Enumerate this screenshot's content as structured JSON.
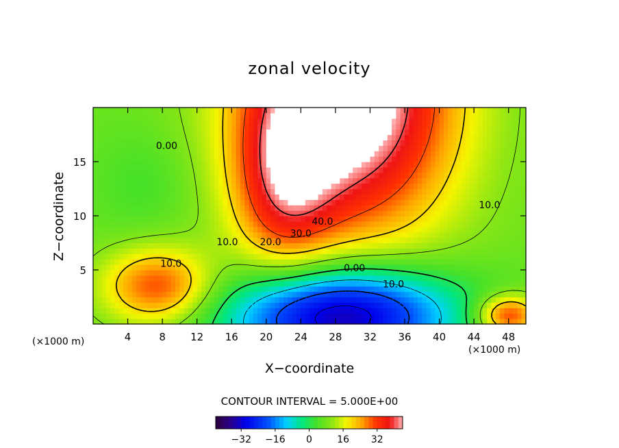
{
  "chart_data": {
    "type": "heatmap",
    "title": "zonal velocity",
    "xlabel": "X−coordinate",
    "ylabel": "Z−coordinate",
    "x_unit_left": "(×1000 m)",
    "x_unit_right": "(×1000 m)",
    "xlim": [
      0,
      50
    ],
    "ylim": [
      0,
      20
    ],
    "x_ticks": [
      4,
      8,
      12,
      16,
      20,
      24,
      28,
      32,
      36,
      40,
      44,
      48
    ],
    "y_ticks": [
      5,
      10,
      15
    ],
    "contour_interval_text": "CONTOUR INTERVAL = 5.000E+00",
    "contour_labels": [
      {
        "text": "0.00",
        "x": 8.5,
        "z": 16.5
      },
      {
        "text": "10.0",
        "x": 45.8,
        "z": 11.0
      },
      {
        "text": "40.0",
        "x": 26.5,
        "z": 9.5
      },
      {
        "text": "30.0",
        "x": 24.0,
        "z": 8.4
      },
      {
        "text": "20.0",
        "x": 20.5,
        "z": 7.6
      },
      {
        "text": "10.0",
        "x": 15.5,
        "z": 7.6
      },
      {
        "text": "10.0",
        "x": 9.0,
        "z": 5.6
      },
      {
        "text": "0.00",
        "x": 30.2,
        "z": 5.2
      },
      {
        "text": "10.0",
        "x": 34.7,
        "z": 3.7
      }
    ],
    "colorbar": {
      "range": [
        -44,
        44
      ],
      "ticks": [
        -32,
        -16,
        0,
        16,
        32
      ],
      "tick_labels": [
        "−32",
        "−16",
        "0",
        "16",
        "32"
      ]
    },
    "field_features": [
      {
        "kind": "jet",
        "x": 29.5,
        "z": 21.0,
        "sx": 8.5,
        "sz": 9.0,
        "amp": 46
      },
      {
        "kind": "jet-arm",
        "x": 22.0,
        "z": 13.0,
        "sx": 4.0,
        "sz": 6.0,
        "amp": 20
      },
      {
        "kind": "reverse-flow",
        "x": 28.5,
        "z": 0.8,
        "sx": 9.0,
        "sz": 3.2,
        "amp": -44
      },
      {
        "kind": "lower-left",
        "x": 7.5,
        "z": 3.5,
        "sx": 4.5,
        "sz": 2.5,
        "amp": 24
      },
      {
        "kind": "lower-right",
        "x": 48.0,
        "z": 0.8,
        "sx": 2.5,
        "sz": 1.3,
        "amp": 26
      },
      {
        "kind": "left-weak",
        "x": 6.0,
        "z": 13.0,
        "sx": 4.0,
        "sz": 3.5,
        "amp": -4
      }
    ],
    "background_value": 7,
    "colors": {
      "saturated_region": "#ffffff",
      "frame": "#000000"
    }
  }
}
